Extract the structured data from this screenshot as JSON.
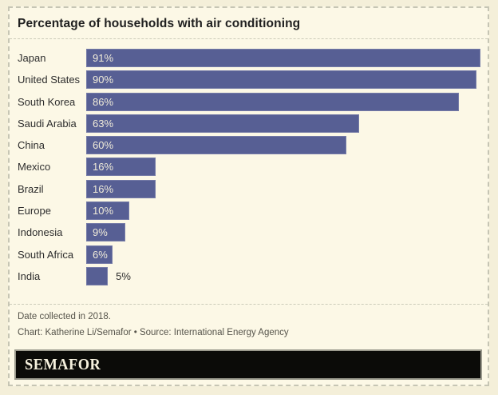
{
  "title": "Percentage of households with air conditioning",
  "chart_data": {
    "type": "bar",
    "orientation": "horizontal",
    "title": "Percentage of households with air conditioning",
    "categories": [
      "Japan",
      "United States",
      "South Korea",
      "Saudi Arabia",
      "China",
      "Mexico",
      "Brazil",
      "Europe",
      "Indonesia",
      "South Africa",
      "India"
    ],
    "values": [
      91,
      90,
      86,
      63,
      60,
      16,
      16,
      10,
      9,
      6,
      5
    ],
    "value_labels": [
      "91%",
      "90%",
      "86%",
      "63%",
      "60%",
      "16%",
      "16%",
      "10%",
      "9%",
      "6%",
      "5%"
    ],
    "unit": "%",
    "xlim": [
      0,
      91
    ],
    "grid": false,
    "legend": "none",
    "bar_color": "#575f94",
    "inside_label_min_value": 6
  },
  "footer": {
    "note": "Date collected in 2018.",
    "credit": "Chart: Katherine Li/Semafor • Source: International Energy Agency"
  },
  "logo": {
    "text": "SEMAFOR"
  },
  "colors": {
    "outer_background": "#f4efd9",
    "card_background": "#fcf8e6",
    "dashed_border": "#c6c5b4",
    "bar": "#575f94",
    "bar_value_text": "#f1ecd9",
    "label_text": "#2d2d2d",
    "footer_text": "#56544b",
    "logo_background": "#0b0b08",
    "logo_text": "#f6f1de"
  }
}
